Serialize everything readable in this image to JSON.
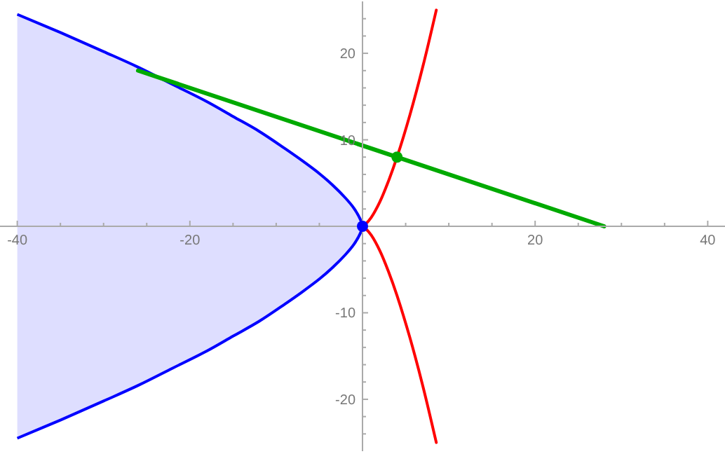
{
  "chart_data": {
    "type": "line",
    "xlim": [
      -42,
      42
    ],
    "ylim": [
      -26,
      26
    ],
    "xticks": [
      -40,
      {
        "value": -35,
        "label": null
      },
      {
        "value": -30,
        "label": null
      },
      {
        "value": -25,
        "label": null
      },
      -20,
      {
        "value": -15,
        "label": null
      },
      {
        "value": -10,
        "label": null
      },
      {
        "value": -5,
        "label": null
      },
      {
        "value": 5,
        "label": null
      },
      {
        "value": 10,
        "label": null
      },
      {
        "value": 15,
        "label": null
      },
      20,
      {
        "value": 25,
        "label": null
      },
      {
        "value": 30,
        "label": null
      },
      {
        "value": 35,
        "label": null
      },
      40
    ],
    "yticks": [
      {
        "value": -24,
        "label": null
      },
      {
        "value": -22,
        "label": null
      },
      -20,
      {
        "value": -18,
        "label": null
      },
      {
        "value": -16,
        "label": null
      },
      {
        "value": -14,
        "label": null
      },
      {
        "value": -12,
        "label": null
      },
      -10,
      {
        "value": -8,
        "label": null
      },
      {
        "value": -6,
        "label": null
      },
      {
        "value": -4,
        "label": null
      },
      {
        "value": -2,
        "label": null
      },
      {
        "value": 2,
        "label": null
      },
      {
        "value": 4,
        "label": null
      },
      {
        "value": 6,
        "label": null
      },
      {
        "value": 8,
        "label": null
      },
      10,
      {
        "value": 12,
        "label": null
      },
      {
        "value": 14,
        "label": null
      },
      {
        "value": 16,
        "label": null
      },
      {
        "value": 18,
        "label": null
      },
      20,
      {
        "value": 22,
        "label": null
      },
      {
        "value": 24,
        "label": null
      }
    ],
    "grid": false,
    "series": [
      {
        "type": "area",
        "color": "#0000ff",
        "x": [
          -40,
          -35,
          -30,
          -26,
          -22,
          -18,
          -15,
          -12,
          -9,
          -7,
          -5,
          -3.5,
          -2,
          -1,
          -0.3,
          0,
          -0.3,
          -1,
          -2,
          -3.5,
          -5,
          -7,
          -9,
          -12,
          -15,
          -18,
          -22,
          -26,
          -30,
          -35,
          -40
        ],
        "values": [
          24.5,
          22.4,
          20.2,
          18.4,
          16.4,
          14.4,
          12.7,
          11,
          9,
          7.6,
          6.1,
          4.8,
          3.3,
          2.1,
          0.9,
          0,
          -0.9,
          -2.1,
          -3.3,
          -4.8,
          -6.1,
          -7.6,
          -9,
          -11,
          -12.7,
          -14.4,
          -16.4,
          -18.4,
          -20.2,
          -22.4,
          -24.5
        ]
      },
      {
        "type": "line",
        "color": "#ff0000",
        "x": [
          8.55,
          7,
          5.5,
          4,
          3,
          2,
          1,
          0.4,
          0,
          0.4,
          1,
          2,
          3,
          4,
          5.5,
          7,
          8.55
        ],
        "values": [
          -25,
          -18.5,
          -12.9,
          -8,
          -5.2,
          -2.8,
          -1,
          -0.3,
          0,
          0.3,
          1,
          2.8,
          5.2,
          8,
          12.9,
          18.5,
          25
        ]
      },
      {
        "type": "line",
        "color": "#00aa00",
        "x": [
          -26,
          28
        ],
        "values": [
          18,
          0
        ]
      },
      {
        "type": "scatter",
        "color": "#0000ff",
        "x": [
          0
        ],
        "values": [
          0
        ]
      },
      {
        "type": "scatter",
        "color": "#00aa00",
        "x": [
          4
        ],
        "values": [
          8
        ]
      }
    ]
  }
}
